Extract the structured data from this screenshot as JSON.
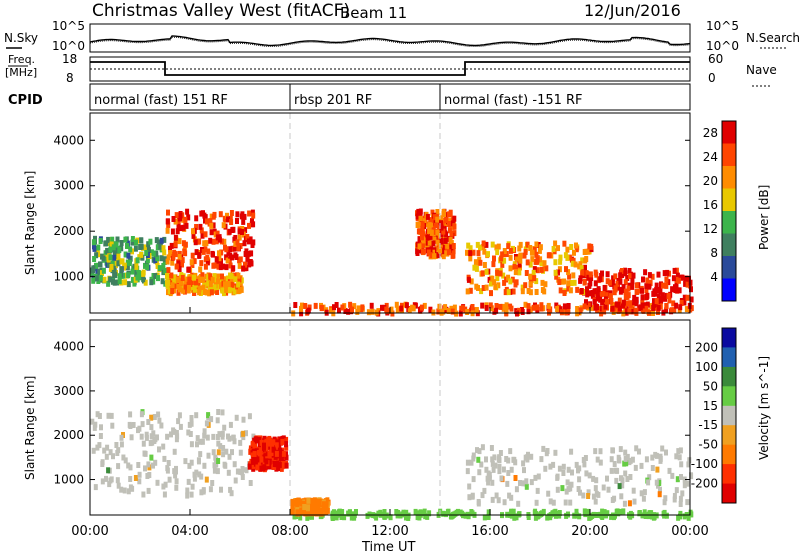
{
  "header": {
    "title": "Christmas Valley West (fitACF)",
    "beam": "Beam 11",
    "date": "12/Jun/2016"
  },
  "noise_panel": {
    "left_label": "N.Sky",
    "right_label": "N.Search",
    "y_ticks_left": [
      "10^5",
      "10^0"
    ],
    "y_ticks_right": [
      "10^5",
      "10^0"
    ]
  },
  "freq_panel": {
    "left_label_1": "Freq.",
    "left_label_2": "[MHz]",
    "right_label": "Nave",
    "y_ticks_left": [
      "18",
      "8"
    ],
    "y_ticks_right": [
      "60",
      "0"
    ]
  },
  "cpid": {
    "label": "CPID",
    "segments": [
      {
        "label": "normal (fast) 151 RF",
        "start_hour": 0
      },
      {
        "label": "rbsp 201 RF",
        "start_hour": 8
      },
      {
        "label": "normal (fast) -151 RF",
        "start_hour": 14
      }
    ]
  },
  "colors": {
    "power_scale": [
      "#0000ff",
      "#2a4a9a",
      "#3f7f5f",
      "#3cb44b",
      "#e8c800",
      "#ff8c00",
      "#ff4500",
      "#e00000"
    ],
    "velocity_scale": [
      "#0a0aa0",
      "#2060b0",
      "#3a8a3a",
      "#66cc44",
      "#c0c0b8",
      "#f0a020",
      "#ff7a00",
      "#ff3000",
      "#e00000"
    ],
    "ground_scatter": "#c0c0b8"
  },
  "chart_data": [
    {
      "type": "heatmap",
      "name_text": "Power range-time plot",
      "ylabel": "Slant Range [km]",
      "xlabel": "Time UT",
      "x_ticks": [
        "00:00",
        "04:00",
        "08:00",
        "12:00",
        "16:00",
        "20:00",
        "00:00"
      ],
      "x_range_hours": [
        0,
        24
      ],
      "y_ticks": [
        1000,
        2000,
        3000,
        4000
      ],
      "y_range": [
        200,
        4600
      ],
      "colorbar": {
        "label": "Power [dB]",
        "ticks": [
          4,
          8,
          12,
          16,
          20,
          24,
          28
        ],
        "range": [
          0,
          30
        ]
      },
      "features": [
        {
          "t0": 0.0,
          "t1": 3.0,
          "r0": 900,
          "r1": 1900,
          "value": 12
        },
        {
          "t0": 3.0,
          "t1": 6.5,
          "r0": 1200,
          "r1": 2500,
          "value": 26
        },
        {
          "t0": 3.0,
          "t1": 6.0,
          "r0": 700,
          "r1": 1100,
          "value": 20
        },
        {
          "t0": 8.0,
          "t1": 24.0,
          "r0": 250,
          "r1": 450,
          "value": 24
        },
        {
          "t0": 13.0,
          "t1": 14.5,
          "r0": 1500,
          "r1": 2500,
          "value": 24
        },
        {
          "t0": 15.0,
          "t1": 20.0,
          "r0": 700,
          "r1": 1800,
          "value": 22
        },
        {
          "t0": 19.5,
          "t1": 24.0,
          "r0": 350,
          "r1": 1200,
          "value": 28
        }
      ]
    },
    {
      "type": "heatmap",
      "name_text": "Velocity range-time plot",
      "ylabel": "Slant Range [km]",
      "xlabel": "Time UT",
      "x_ticks": [
        "00:00",
        "04:00",
        "08:00",
        "12:00",
        "16:00",
        "20:00",
        "00:00"
      ],
      "x_range_hours": [
        0,
        24
      ],
      "y_ticks": [
        1000,
        2000,
        3000,
        4000
      ],
      "y_range": [
        200,
        4600
      ],
      "colorbar": {
        "label": "Velocity [m s^-1]",
        "ticks": [
          200,
          100,
          50,
          15,
          -15,
          -50,
          -100,
          -200
        ]
      },
      "features": [
        {
          "t0": 0.0,
          "t1": 6.5,
          "r0": 700,
          "r1": 2600,
          "value": 0
        },
        {
          "t0": 6.3,
          "t1": 7.8,
          "r0": 1300,
          "r1": 2000,
          "value": -200
        },
        {
          "t0": 8.0,
          "t1": 24.0,
          "r0": 200,
          "r1": 350,
          "value": 30
        },
        {
          "t0": 8.0,
          "t1": 9.5,
          "r0": 300,
          "r1": 600,
          "value": -60
        },
        {
          "t0": 15.0,
          "t1": 24.0,
          "r0": 500,
          "r1": 1800,
          "value": 0
        }
      ]
    }
  ]
}
